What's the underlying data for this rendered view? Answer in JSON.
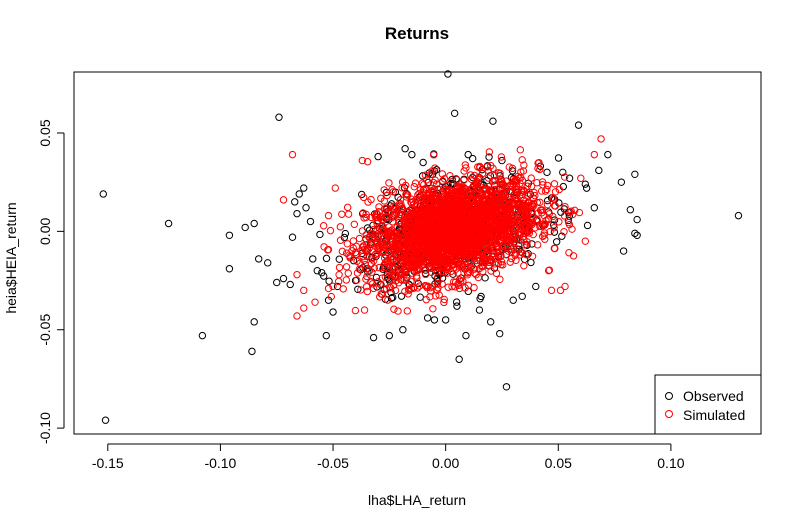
{
  "chart_data": {
    "type": "scatter",
    "title": "Returns",
    "xlabel": "lha$LHA_return",
    "ylabel": "heia$HEIA_return",
    "xlim": [
      -0.165,
      0.14
    ],
    "ylim": [
      -0.103,
      0.081
    ],
    "x_ticks": [
      -0.15,
      -0.1,
      -0.05,
      0.0,
      0.05,
      0.1
    ],
    "x_tick_labels": [
      "-0.15",
      "-0.10",
      "-0.05",
      "0.00",
      "0.05",
      "0.10"
    ],
    "y_ticks": [
      -0.1,
      -0.05,
      0.0,
      0.05
    ],
    "y_tick_labels": [
      "-0.10",
      "-0.05",
      "0.00",
      "0.05"
    ],
    "grid": false,
    "legend_position": "bottom-right",
    "series": [
      {
        "name": "Observed",
        "color": "#000000",
        "marker": "open-circle",
        "x": [
          -0.152,
          -0.151,
          -0.123,
          -0.108,
          -0.096,
          -0.096,
          -0.089,
          -0.086,
          -0.085,
          -0.085,
          -0.083,
          -0.079,
          -0.075,
          -0.074,
          -0.072,
          -0.069,
          -0.068,
          -0.067,
          -0.066,
          -0.065,
          -0.063,
          -0.062,
          -0.06,
          -0.059,
          -0.057,
          -0.055,
          -0.053,
          -0.052,
          -0.05,
          -0.048,
          0.001,
          0.004,
          0.006,
          0.009,
          0.024,
          0.027,
          0.021,
          -0.018,
          -0.015,
          0.059,
          0.062,
          0.063,
          0.072,
          0.078,
          0.084,
          0.085,
          0.085,
          0.084,
          0.082,
          0.079,
          0.13,
          0.047,
          0.052,
          0.068,
          0.066,
          0.055,
          0.01,
          -0.005,
          0.0,
          -0.019,
          -0.025,
          0.015,
          0.02,
          0.03,
          0.034,
          -0.032,
          -0.04,
          0.04,
          0.045,
          -0.01,
          0.005,
          0.012,
          -0.03,
          -0.008,
          0.025
        ],
        "y": [
          0.019,
          -0.096,
          0.004,
          -0.053,
          -0.002,
          -0.019,
          0.002,
          -0.061,
          0.004,
          -0.046,
          -0.014,
          -0.016,
          -0.026,
          0.058,
          -0.024,
          -0.027,
          -0.003,
          0.015,
          0.009,
          0.019,
          0.022,
          0.012,
          0.005,
          -0.014,
          -0.02,
          -0.021,
          -0.053,
          -0.035,
          -0.041,
          -0.028,
          0.08,
          0.06,
          -0.065,
          -0.053,
          -0.052,
          -0.079,
          0.056,
          0.042,
          0.039,
          0.054,
          0.024,
          0.003,
          0.039,
          0.025,
          0.029,
          0.006,
          -0.002,
          -0.001,
          0.011,
          -0.01,
          0.008,
          0.017,
          0.03,
          0.031,
          0.012,
          0.027,
          0.039,
          -0.045,
          -0.045,
          -0.05,
          -0.053,
          -0.04,
          -0.046,
          -0.035,
          -0.033,
          -0.054,
          -0.025,
          -0.028,
          0.03,
          0.035,
          -0.038,
          0.037,
          0.038,
          -0.044,
          0.036
        ]
      },
      {
        "name": "Simulated",
        "color": "#ff0000",
        "marker": "open-circle",
        "x": [
          -0.068,
          -0.072,
          -0.066,
          -0.063,
          0.069,
          0.066,
          -0.066,
          -0.063,
          -0.058,
          -0.052,
          -0.049,
          -0.052,
          -0.044,
          0.041,
          0.044,
          0.047,
          0.051,
          0.053,
          -0.037,
          -0.036,
          0.06,
          0.062
        ],
        "y": [
          0.039,
          0.016,
          -0.022,
          -0.039,
          0.047,
          0.039,
          -0.043,
          -0.03,
          -0.036,
          -0.029,
          0.022,
          0.008,
          -0.018,
          0.032,
          -0.004,
          -0.03,
          -0.03,
          -0.028,
          0.036,
          -0.04,
          0.027,
          -0.005
        ]
      }
    ],
    "legend": [
      {
        "label": "Observed",
        "color": "#000000"
      },
      {
        "label": "Simulated",
        "color": "#ff0000"
      }
    ]
  }
}
